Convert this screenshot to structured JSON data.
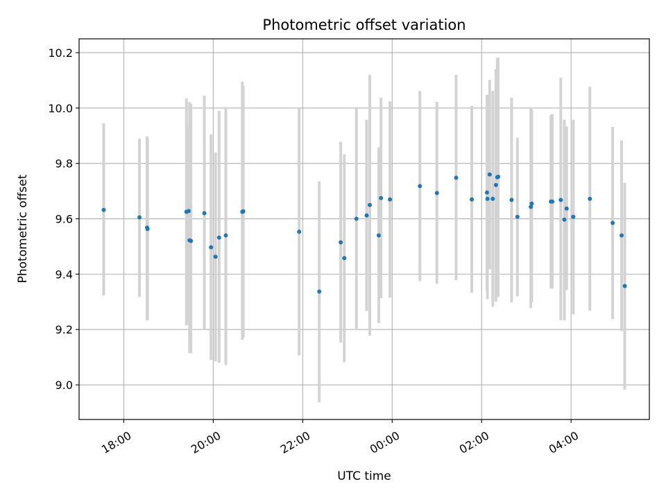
{
  "chart_data": {
    "type": "scatter",
    "title": "Photometric offset variation",
    "xlabel": "UTC time",
    "ylabel": "Photometric offset",
    "x_unit": "hours (UTC, relative to 00:00)",
    "xlim": [
      -7.0,
      5.75
    ],
    "ylim": [
      8.875,
      10.25
    ],
    "xticks": [
      {
        "value": -6,
        "label": "18:00"
      },
      {
        "value": -4,
        "label": "20:00"
      },
      {
        "value": -2,
        "label": "22:00"
      },
      {
        "value": 0,
        "label": "00:00"
      },
      {
        "value": 2,
        "label": "02:00"
      },
      {
        "value": 4,
        "label": "04:00"
      }
    ],
    "yticks": [
      {
        "value": 9.0,
        "label": "9.0"
      },
      {
        "value": 9.2,
        "label": "9.2"
      },
      {
        "value": 9.4,
        "label": "9.4"
      },
      {
        "value": 9.6,
        "label": "9.6"
      },
      {
        "value": 9.8,
        "label": "9.8"
      },
      {
        "value": 10.0,
        "label": "10.0"
      },
      {
        "value": 10.2,
        "label": "10.2"
      }
    ],
    "grid": true,
    "marker_color": "#1f77b4",
    "errorbar_color": "#d3d3d3",
    "points": [
      {
        "x": -6.45,
        "y": 9.632,
        "lo": 9.323,
        "hi": 9.945
      },
      {
        "x": -5.65,
        "y": 9.605,
        "lo": 9.318,
        "hi": 9.89
      },
      {
        "x": -5.48,
        "y": 9.568,
        "lo": 9.233,
        "hi": 9.898
      },
      {
        "x": -5.47,
        "y": 9.563,
        "lo": 9.235,
        "hi": 9.89
      },
      {
        "x": -4.6,
        "y": 9.625,
        "lo": 9.215,
        "hi": 10.035
      },
      {
        "x": -4.55,
        "y": 9.628,
        "lo": 9.22,
        "hi": 9.93
      },
      {
        "x": -4.53,
        "y": 9.522,
        "lo": 9.115,
        "hi": 10.022
      },
      {
        "x": -4.5,
        "y": 9.52,
        "lo": 9.115,
        "hi": 10.015
      },
      {
        "x": -4.2,
        "y": 9.62,
        "lo": 9.198,
        "hi": 10.045
      },
      {
        "x": -4.05,
        "y": 9.497,
        "lo": 9.09,
        "hi": 9.905
      },
      {
        "x": -3.95,
        "y": 9.463,
        "lo": 9.085,
        "hi": 9.84
      },
      {
        "x": -3.87,
        "y": 9.532,
        "lo": 9.08,
        "hi": 9.99
      },
      {
        "x": -3.72,
        "y": 9.54,
        "lo": 9.072,
        "hi": 10.003
      },
      {
        "x": -3.35,
        "y": 9.625,
        "lo": 9.163,
        "hi": 10.095
      },
      {
        "x": -3.33,
        "y": 9.627,
        "lo": 9.17,
        "hi": 10.08
      },
      {
        "x": -2.08,
        "y": 9.553,
        "lo": 9.107,
        "hi": 9.998
      },
      {
        "x": -1.63,
        "y": 9.337,
        "lo": 8.937,
        "hi": 9.735
      },
      {
        "x": -1.15,
        "y": 9.515,
        "lo": 9.153,
        "hi": 9.878
      },
      {
        "x": -1.07,
        "y": 9.458,
        "lo": 9.082,
        "hi": 9.833
      },
      {
        "x": -0.8,
        "y": 9.6,
        "lo": 9.203,
        "hi": 9.998
      },
      {
        "x": -0.57,
        "y": 9.612,
        "lo": 9.267,
        "hi": 9.957
      },
      {
        "x": -0.5,
        "y": 9.65,
        "lo": 9.178,
        "hi": 10.12
      },
      {
        "x": -0.3,
        "y": 9.54,
        "lo": 9.223,
        "hi": 9.858
      },
      {
        "x": -0.25,
        "y": 9.675,
        "lo": 9.313,
        "hi": 10.037
      },
      {
        "x": -0.05,
        "y": 9.67,
        "lo": 9.315,
        "hi": 10.025
      },
      {
        "x": 0.62,
        "y": 9.718,
        "lo": 9.375,
        "hi": 10.062
      },
      {
        "x": 1.0,
        "y": 9.693,
        "lo": 9.365,
        "hi": 10.022
      },
      {
        "x": 1.43,
        "y": 9.748,
        "lo": 9.378,
        "hi": 10.12
      },
      {
        "x": 1.78,
        "y": 9.67,
        "lo": 9.333,
        "hi": 10.008
      },
      {
        "x": 2.12,
        "y": 9.695,
        "lo": 9.34,
        "hi": 10.048
      },
      {
        "x": 2.13,
        "y": 9.672,
        "lo": 9.31,
        "hi": 10.03
      },
      {
        "x": 2.18,
        "y": 9.76,
        "lo": 9.418,
        "hi": 10.102
      },
      {
        "x": 2.25,
        "y": 9.672,
        "lo": 9.282,
        "hi": 10.062
      },
      {
        "x": 2.32,
        "y": 9.722,
        "lo": 9.3,
        "hi": 10.14
      },
      {
        "x": 2.35,
        "y": 9.75,
        "lo": 9.318,
        "hi": 10.18
      },
      {
        "x": 2.37,
        "y": 9.752,
        "lo": 9.318,
        "hi": 10.182
      },
      {
        "x": 2.67,
        "y": 9.668,
        "lo": 9.298,
        "hi": 10.037
      },
      {
        "x": 2.8,
        "y": 9.607,
        "lo": 9.32,
        "hi": 9.893
      },
      {
        "x": 3.1,
        "y": 9.643,
        "lo": 9.278,
        "hi": 10.003
      },
      {
        "x": 3.12,
        "y": 9.655,
        "lo": 9.298,
        "hi": 9.995
      },
      {
        "x": 3.55,
        "y": 9.662,
        "lo": 9.348,
        "hi": 9.975
      },
      {
        "x": 3.58,
        "y": 9.662,
        "lo": 9.348,
        "hi": 9.978
      },
      {
        "x": 3.77,
        "y": 9.668,
        "lo": 9.233,
        "hi": 10.11
      },
      {
        "x": 3.85,
        "y": 9.597,
        "lo": 9.233,
        "hi": 9.958
      },
      {
        "x": 3.9,
        "y": 9.637,
        "lo": 9.343,
        "hi": 9.933
      },
      {
        "x": 4.05,
        "y": 9.607,
        "lo": 9.255,
        "hi": 9.958
      },
      {
        "x": 4.42,
        "y": 9.672,
        "lo": 9.268,
        "hi": 10.077
      },
      {
        "x": 4.93,
        "y": 9.585,
        "lo": 9.238,
        "hi": 9.932
      },
      {
        "x": 5.13,
        "y": 9.54,
        "lo": 9.195,
        "hi": 9.883
      },
      {
        "x": 5.2,
        "y": 9.357,
        "lo": 8.983,
        "hi": 9.73
      }
    ]
  }
}
